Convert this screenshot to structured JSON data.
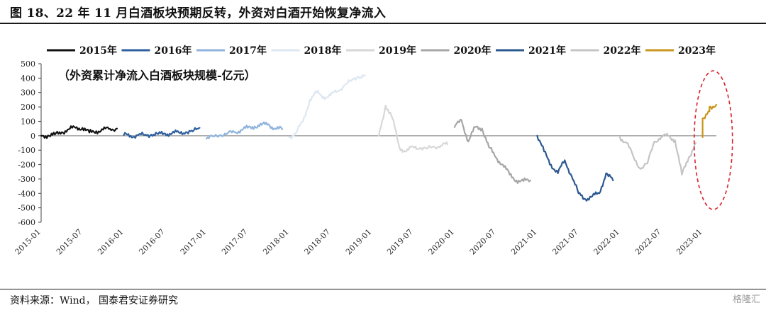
{
  "figure": {
    "title": "图 18、22 年 11 月白酒板块预期反转，外资对白酒开始恢复净流入",
    "source": "资料来源：Wind，  国泰君安证券研究",
    "watermark": "格隆汇"
  },
  "chart_data": {
    "type": "line",
    "title": "",
    "annotation": "（外资累计净流入白酒板块规模-亿元）",
    "ylim": [
      -600,
      500
    ],
    "yticks": [
      500,
      400,
      300,
      200,
      100,
      0,
      -100,
      -200,
      -300,
      -400,
      -500,
      -600
    ],
    "xticks": [
      "2015-01",
      "2015-07",
      "2016-01",
      "2016-07",
      "2017-01",
      "2017-07",
      "2018-01",
      "2018-07",
      "2019-01",
      "2019-07",
      "2020-01",
      "2020-07",
      "2021-01",
      "2021-07",
      "2022-01",
      "2022-07",
      "2023-01"
    ],
    "xlim": [
      "2015-01",
      "2023-03"
    ],
    "legend_position": "top",
    "highlight": {
      "shape": "dashed-ellipse",
      "color": "#d9202a",
      "around": "2022-11 to 2023-02"
    },
    "series": [
      {
        "name": "2015年",
        "color": "#111111",
        "points": [
          [
            "2015-01",
            0
          ],
          [
            "2015-02",
            2
          ],
          [
            "2015-03",
            8
          ],
          [
            "2015-04",
            25
          ],
          [
            "2015-05",
            45
          ],
          [
            "2015-06",
            55
          ],
          [
            "2015-07",
            55
          ],
          [
            "2015-08",
            22
          ],
          [
            "2015-09",
            32
          ],
          [
            "2015-10",
            42
          ],
          [
            "2015-11",
            48
          ],
          [
            "2015-12",
            50
          ]
        ]
      },
      {
        "name": "2016年",
        "color": "#2e5f9e",
        "points": [
          [
            "2016-01",
            5
          ],
          [
            "2016-02",
            0
          ],
          [
            "2016-03",
            3
          ],
          [
            "2016-04",
            5
          ],
          [
            "2016-05",
            8
          ],
          [
            "2016-06",
            12
          ],
          [
            "2016-07",
            15
          ],
          [
            "2016-08",
            18
          ],
          [
            "2016-09",
            22
          ],
          [
            "2016-10",
            25
          ],
          [
            "2016-11",
            30
          ],
          [
            "2016-12",
            55
          ]
        ]
      },
      {
        "name": "2017年",
        "color": "#8fb3dc",
        "points": [
          [
            "2017-01",
            -20
          ],
          [
            "2017-02",
            -5
          ],
          [
            "2017-03",
            5
          ],
          [
            "2017-04",
            15
          ],
          [
            "2017-05",
            25
          ],
          [
            "2017-06",
            40
          ],
          [
            "2017-07",
            55
          ],
          [
            "2017-08",
            65
          ],
          [
            "2017-09",
            75
          ],
          [
            "2017-10",
            80
          ],
          [
            "2017-11",
            50
          ],
          [
            "2017-12",
            45
          ]
        ]
      },
      {
        "name": "2018年",
        "color": "#dde7f2",
        "points": [
          [
            "2018-01",
            -10
          ],
          [
            "2018-02",
            20
          ],
          [
            "2018-03",
            100
          ],
          [
            "2018-04",
            250
          ],
          [
            "2018-05",
            300
          ],
          [
            "2018-06",
            270
          ],
          [
            "2018-07",
            280
          ],
          [
            "2018-08",
            310
          ],
          [
            "2018-09",
            350
          ],
          [
            "2018-10",
            380
          ],
          [
            "2018-11",
            410
          ],
          [
            "2018-12",
            420
          ]
        ]
      },
      {
        "name": "2019年",
        "color": "#d7d7d7",
        "points": [
          [
            "2019-02",
            0
          ],
          [
            "2019-03",
            210
          ],
          [
            "2019-04",
            120
          ],
          [
            "2019-05",
            -80
          ],
          [
            "2019-06",
            -110
          ],
          [
            "2019-07",
            -75
          ],
          [
            "2019-08",
            -85
          ],
          [
            "2019-09",
            -90
          ],
          [
            "2019-10",
            -75
          ],
          [
            "2019-11",
            -70
          ],
          [
            "2019-12",
            -60
          ]
        ]
      },
      {
        "name": "2020年",
        "color": "#a6a6a6",
        "points": [
          [
            "2020-01",
            60
          ],
          [
            "2020-02",
            110
          ],
          [
            "2020-03",
            -40
          ],
          [
            "2020-04",
            60
          ],
          [
            "2020-05",
            50
          ],
          [
            "2020-06",
            -80
          ],
          [
            "2020-07",
            -150
          ],
          [
            "2020-08",
            -200
          ],
          [
            "2020-09",
            -270
          ],
          [
            "2020-10",
            -310
          ],
          [
            "2020-11",
            -315
          ],
          [
            "2020-12",
            -310
          ]
        ]
      },
      {
        "name": "2021年",
        "color": "#2c5890",
        "points": [
          [
            "2021-01",
            0
          ],
          [
            "2021-02",
            -110
          ],
          [
            "2021-03",
            -200
          ],
          [
            "2021-04",
            -260
          ],
          [
            "2021-05",
            -170
          ],
          [
            "2021-06",
            -280
          ],
          [
            "2021-07",
            -400
          ],
          [
            "2021-08",
            -440
          ],
          [
            "2021-09",
            -420
          ],
          [
            "2021-10",
            -400
          ],
          [
            "2021-11",
            -260
          ],
          [
            "2021-12",
            -310
          ]
        ]
      },
      {
        "name": "2022年",
        "color": "#c4c4c4",
        "points": [
          [
            "2022-01",
            -10
          ],
          [
            "2022-02",
            -50
          ],
          [
            "2022-03",
            -150
          ],
          [
            "2022-04",
            -230
          ],
          [
            "2022-05",
            -190
          ],
          [
            "2022-06",
            -40
          ],
          [
            "2022-07",
            -10
          ],
          [
            "2022-08",
            0
          ],
          [
            "2022-09",
            -30
          ],
          [
            "2022-10",
            -270
          ],
          [
            "2022-11",
            -150
          ],
          [
            "2022-12",
            -50
          ]
        ]
      },
      {
        "name": "2023年",
        "color": "#c8961c",
        "points": [
          [
            "2023-01",
            -10
          ],
          [
            "2023-01",
            120
          ],
          [
            "2023-02",
            170
          ],
          [
            "2023-02",
            200
          ],
          [
            "2023-03",
            215
          ]
        ]
      }
    ]
  }
}
